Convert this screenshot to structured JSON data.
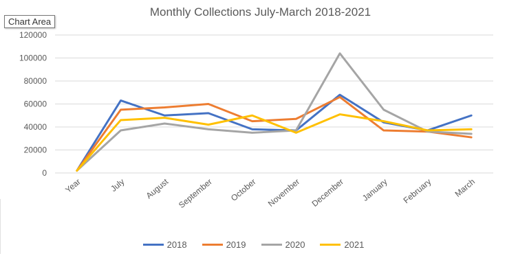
{
  "tooltip_label": "Chart Area",
  "chart_data": {
    "type": "line",
    "title": "Monthly Collections  July-March 2018-2021",
    "categories": [
      "Year",
      "July",
      "August",
      "September",
      "October",
      "November",
      "December",
      "January",
      "February",
      "March"
    ],
    "ylim": [
      0,
      120000
    ],
    "yticks": [
      "0",
      "20000",
      "40000",
      "60000",
      "80000",
      "100000",
      "120000"
    ],
    "grid": true,
    "legend_position": "bottom",
    "series": [
      {
        "name": "2018",
        "color": "#4472C4",
        "values": [
          2018,
          63000,
          50000,
          52000,
          38000,
          37000,
          68000,
          44000,
          37000,
          50000
        ]
      },
      {
        "name": "2019",
        "color": "#ED7D31",
        "values": [
          2019,
          55000,
          57000,
          60000,
          45000,
          47000,
          66000,
          37000,
          36000,
          31000
        ]
      },
      {
        "name": "2020",
        "color": "#A5A5A5",
        "values": [
          2020,
          37000,
          43000,
          38000,
          35000,
          37000,
          104000,
          55000,
          36000,
          34000
        ]
      },
      {
        "name": "2021",
        "color": "#FFC000",
        "values": [
          2021,
          46000,
          48000,
          42000,
          50000,
          35000,
          51000,
          45000,
          37000,
          38000
        ]
      }
    ]
  }
}
